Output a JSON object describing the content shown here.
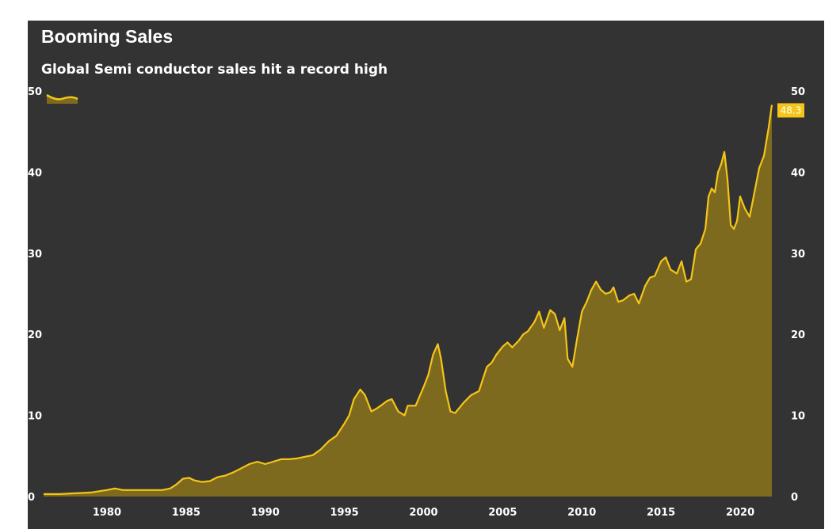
{
  "chart_data": {
    "type": "area",
    "title": "Booming Sales",
    "subtitle": "Global Semi conductor sales hit a record high",
    "xlim": [
      1976,
      2022.2
    ],
    "ylim": [
      0,
      50
    ],
    "x_ticks": [
      1980,
      1985,
      1990,
      1995,
      2000,
      2005,
      2010,
      2015,
      2020
    ],
    "y_ticks": [
      0,
      10,
      20,
      30,
      40,
      50
    ],
    "grid": false,
    "legend": "top-left",
    "last_value_label": "48.3",
    "colors": {
      "line": "#f5c518",
      "fill": "#7d6a1e",
      "background": "#333333",
      "label_bg": "#f5c518"
    },
    "series": [
      {
        "x": [
          1976.0,
          1977.0,
          1978.0,
          1979.0,
          1980.0,
          1980.5,
          1981.0,
          1982.0,
          1983.0,
          1983.5,
          1984.0,
          1984.4,
          1984.8,
          1985.2,
          1985.5,
          1986.0,
          1986.5,
          1987.0,
          1987.5,
          1988.0,
          1988.5,
          1989.0,
          1989.5,
          1990.0,
          1990.5,
          1991.0,
          1991.5,
          1992.0,
          1992.5,
          1993.0,
          1993.5,
          1994.0,
          1994.5,
          1995.0,
          1995.3,
          1995.6,
          1996.0,
          1996.3,
          1996.7,
          1997.0,
          1997.3,
          1997.7,
          1998.0,
          1998.4,
          1998.8,
          1999.0,
          1999.5,
          2000.0,
          2000.3,
          2000.6,
          2000.9,
          2001.1,
          2001.4,
          2001.7,
          2002.0,
          2002.5,
          2003.0,
          2003.5,
          2004.0,
          2004.3,
          2004.6,
          2005.0,
          2005.3,
          2005.6,
          2006.0,
          2006.3,
          2006.6,
          2007.0,
          2007.3,
          2007.6,
          2008.0,
          2008.3,
          2008.6,
          2008.9,
          2009.1,
          2009.4,
          2009.7,
          2010.0,
          2010.3,
          2010.6,
          2010.9,
          2011.2,
          2011.5,
          2011.8,
          2012.0,
          2012.3,
          2012.6,
          2013.0,
          2013.3,
          2013.6,
          2014.0,
          2014.3,
          2014.6,
          2015.0,
          2015.3,
          2015.6,
          2016.0,
          2016.3,
          2016.6,
          2016.9,
          2017.2,
          2017.5,
          2017.8,
          2018.0,
          2018.2,
          2018.4,
          2018.6,
          2018.8,
          2019.0,
          2019.2,
          2019.4,
          2019.6,
          2019.8,
          2020.0,
          2020.3,
          2020.6,
          2020.9,
          2021.2,
          2021.5,
          2021.8,
          2022.0
        ],
        "values": [
          0.3,
          0.3,
          0.4,
          0.5,
          0.8,
          1.0,
          0.8,
          0.8,
          0.8,
          0.8,
          1.0,
          1.5,
          2.2,
          2.3,
          2.0,
          1.8,
          1.9,
          2.4,
          2.6,
          3.0,
          3.5,
          4.0,
          4.3,
          4.0,
          4.3,
          4.6,
          4.6,
          4.7,
          4.9,
          5.1,
          5.8,
          6.8,
          7.5,
          9.0,
          10.0,
          12.0,
          13.2,
          12.5,
          10.5,
          10.8,
          11.2,
          11.8,
          12.0,
          10.5,
          10.0,
          11.2,
          11.2,
          13.5,
          15.0,
          17.5,
          18.8,
          17.0,
          13.0,
          10.5,
          10.3,
          11.5,
          12.5,
          13.0,
          16.0,
          16.5,
          17.5,
          18.5,
          19.0,
          18.4,
          19.2,
          20.0,
          20.4,
          21.5,
          22.8,
          20.8,
          23.0,
          22.5,
          20.5,
          22.0,
          17.0,
          16.0,
          19.5,
          22.8,
          24.0,
          25.5,
          26.5,
          25.5,
          25.0,
          25.2,
          25.8,
          24.0,
          24.2,
          24.8,
          25.0,
          23.8,
          26.0,
          27.0,
          27.2,
          29.0,
          29.5,
          28.0,
          27.5,
          29.0,
          26.5,
          26.8,
          30.5,
          31.2,
          33.0,
          37.0,
          38.0,
          37.5,
          40.0,
          41.0,
          42.5,
          39.0,
          33.5,
          33.0,
          34.0,
          37.0,
          35.5,
          34.5,
          37.5,
          40.5,
          42.0,
          45.5,
          48.3
        ]
      }
    ]
  }
}
